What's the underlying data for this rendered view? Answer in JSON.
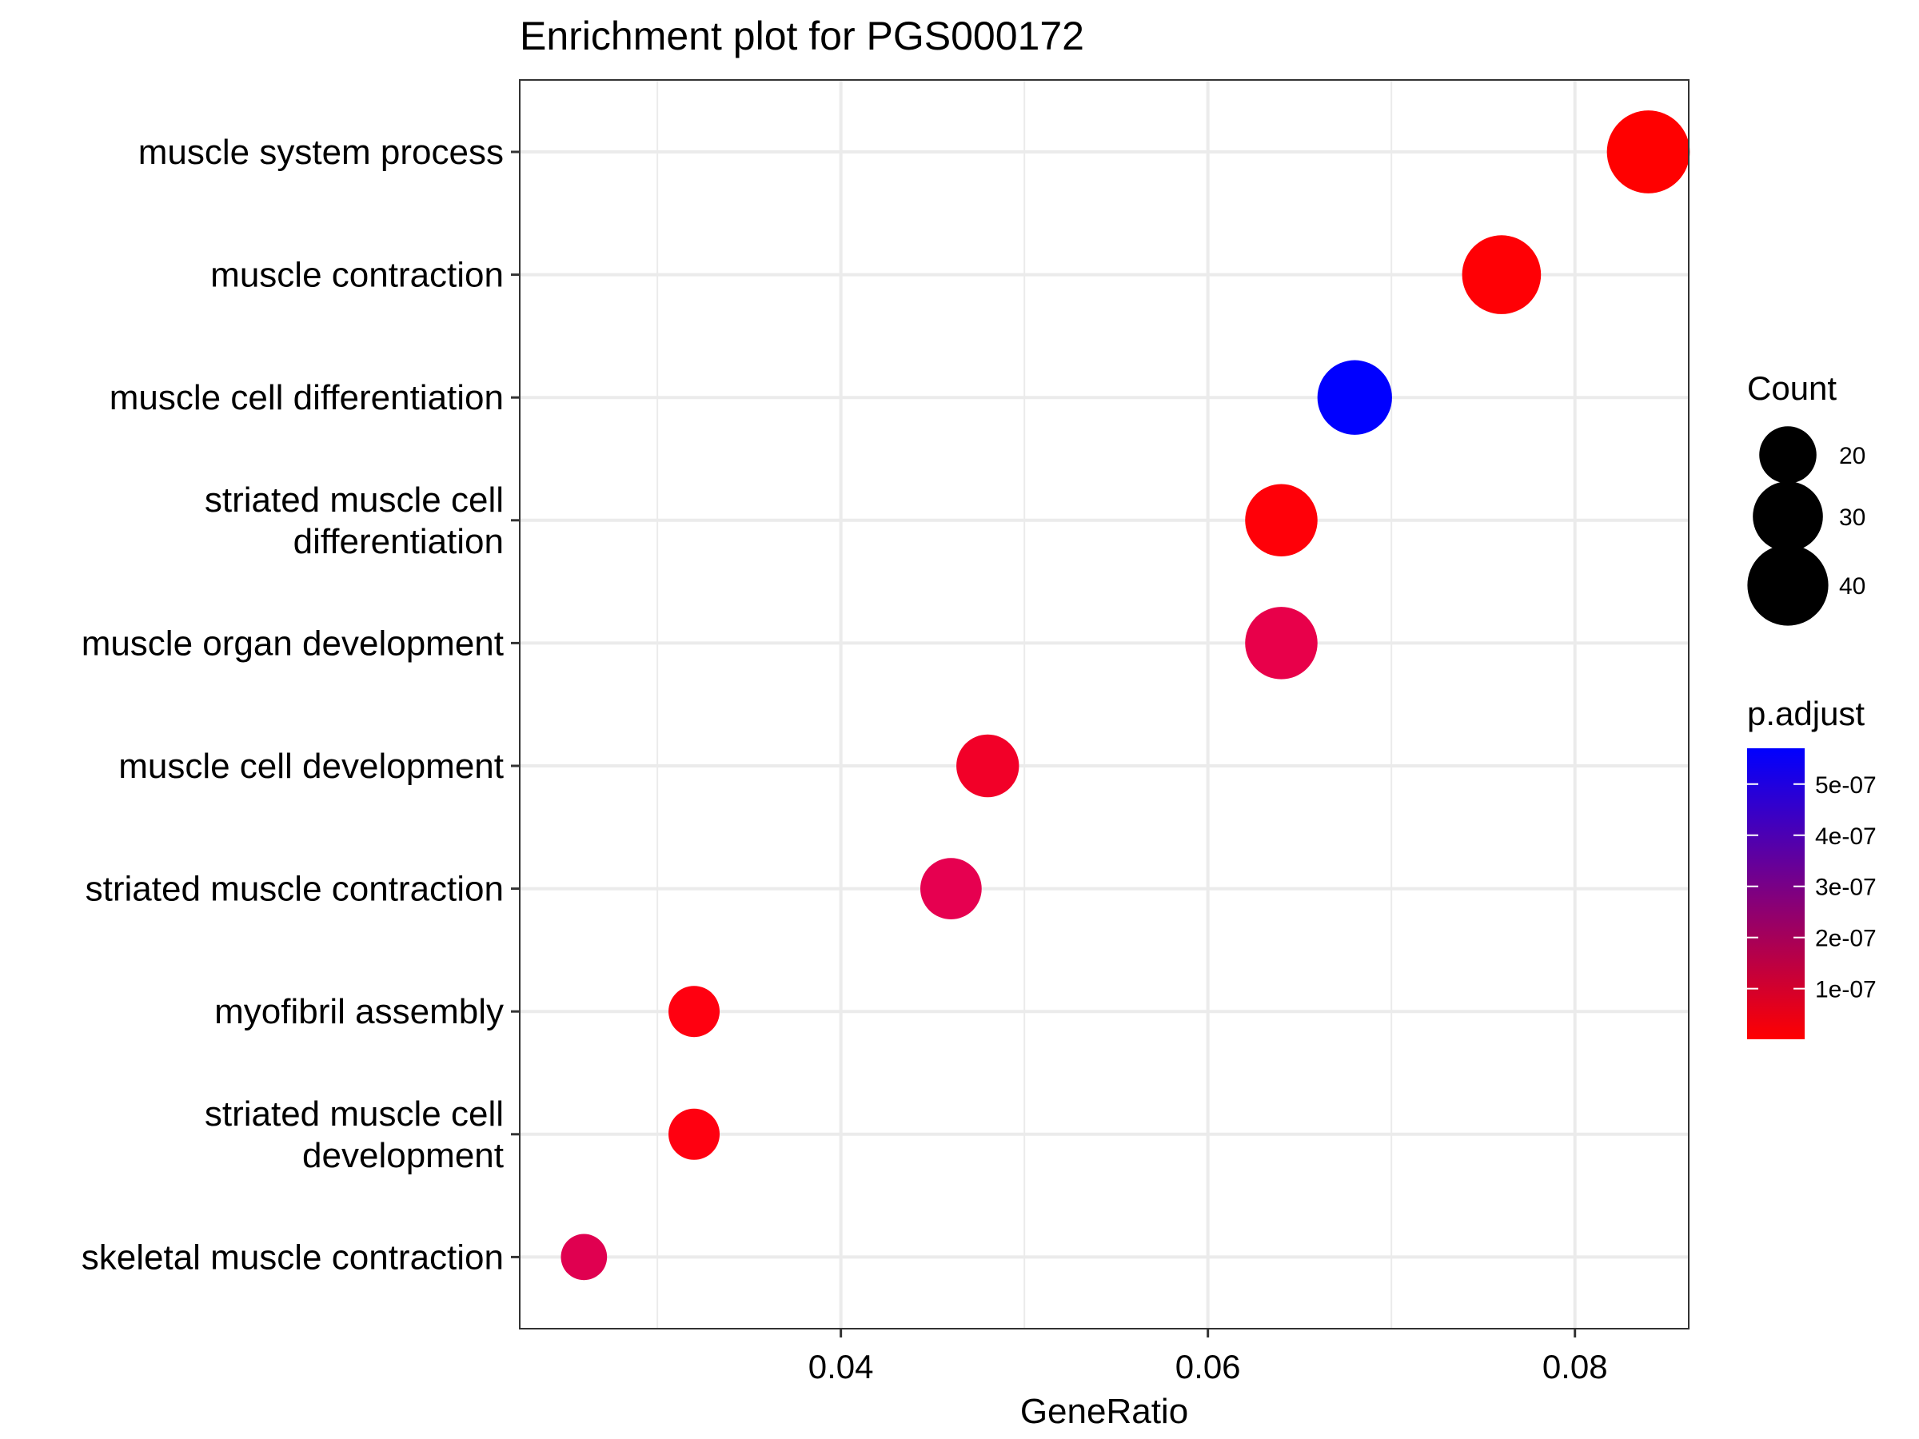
{
  "chart_data": {
    "type": "scatter",
    "title": "Enrichment plot for PGS000172",
    "xlabel": "GeneRatio",
    "ylabel": "",
    "xlim": [
      0.0225,
      0.0862
    ],
    "xticks": [
      "0.04",
      "0.06",
      "0.08"
    ],
    "x_tick_values": [
      0.04,
      0.06,
      0.08
    ],
    "x_minor_values": [
      0.03,
      0.05,
      0.07
    ],
    "grid": true,
    "categories": [
      [
        "muscle system process"
      ],
      [
        "muscle contraction"
      ],
      [
        "muscle cell differentiation"
      ],
      [
        "striated muscle cell",
        "differentiation"
      ],
      [
        "muscle organ development"
      ],
      [
        "muscle cell development"
      ],
      [
        "striated muscle contraction"
      ],
      [
        "myofibril assembly"
      ],
      [
        "striated muscle cell",
        "development"
      ],
      [
        "skeletal muscle contraction"
      ]
    ],
    "points": [
      {
        "x": 0.084,
        "count": 42,
        "p_adjust": 2e-09,
        "color": "#ff0000"
      },
      {
        "x": 0.076,
        "count": 38,
        "p_adjust": 5e-09,
        "color": "#ff0005"
      },
      {
        "x": 0.068,
        "count": 34,
        "p_adjust": 5.7e-07,
        "color": "#0000ff"
      },
      {
        "x": 0.064,
        "count": 32,
        "p_adjust": 1e-08,
        "color": "#ff0008"
      },
      {
        "x": 0.064,
        "count": 32,
        "p_adjust": 1.6e-07,
        "color": "#e8004a"
      },
      {
        "x": 0.048,
        "count": 24,
        "p_adjust": 8e-08,
        "color": "#f20028"
      },
      {
        "x": 0.046,
        "count": 23,
        "p_adjust": 1.7e-07,
        "color": "#e60050"
      },
      {
        "x": 0.032,
        "count": 16,
        "p_adjust": 1e-08,
        "color": "#ff0010"
      },
      {
        "x": 0.032,
        "count": 16,
        "p_adjust": 1e-08,
        "color": "#ff0010"
      },
      {
        "x": 0.026,
        "count": 13,
        "p_adjust": 1.7e-07,
        "color": "#e00050"
      }
    ],
    "legend": {
      "placement": "right",
      "size_title": "Count",
      "size_breaks": [
        {
          "label": "20",
          "count": 20
        },
        {
          "label": "30",
          "count": 30
        },
        {
          "label": "40",
          "count": 40
        }
      ],
      "color_title": "p.adjust",
      "color_range": [
        1e-09,
        5.7e-07
      ],
      "color_low": "#ff0000",
      "color_high": "#0000ff",
      "color_breaks": [
        {
          "label": "5e-07",
          "value": 5e-07
        },
        {
          "label": "4e-07",
          "value": 4e-07
        },
        {
          "label": "3e-07",
          "value": 3e-07
        },
        {
          "label": "2e-07",
          "value": 2e-07
        },
        {
          "label": "1e-07",
          "value": 1e-07
        }
      ]
    }
  }
}
